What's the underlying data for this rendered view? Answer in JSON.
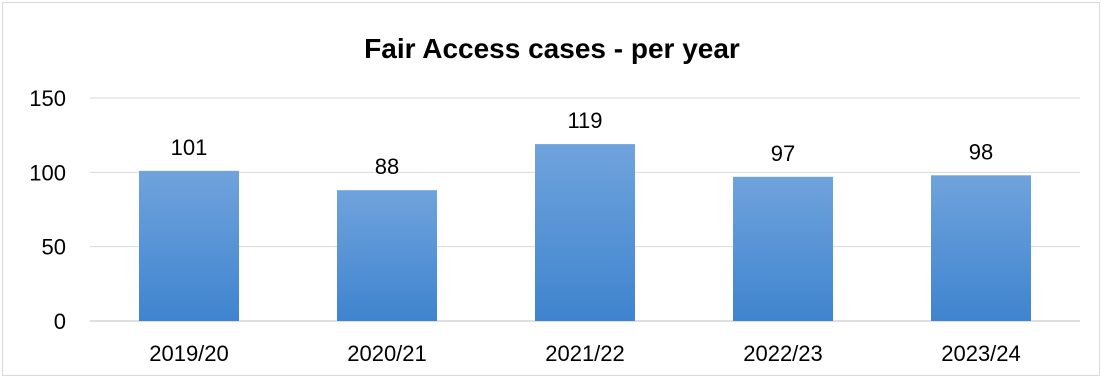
{
  "chart_data": {
    "type": "bar",
    "title": "Fair Access cases - per year",
    "categories": [
      "2019/20",
      "2020/21",
      "2021/22",
      "2022/23",
      "2023/24"
    ],
    "series": [
      {
        "values": [
          101,
          88,
          119,
          97,
          98
        ]
      }
    ],
    "xlabel": "",
    "ylabel": "",
    "ylim": [
      0,
      150
    ],
    "yticks": [
      0,
      50,
      100,
      150
    ],
    "grid": true,
    "legend": "none",
    "data_labels": true,
    "colors": {
      "bar_top": "#6fa3dc",
      "bar_bottom": "#3f84cf",
      "grid": "#d9d9d9",
      "axis": "#bfbfbf",
      "text": "#000000"
    }
  }
}
